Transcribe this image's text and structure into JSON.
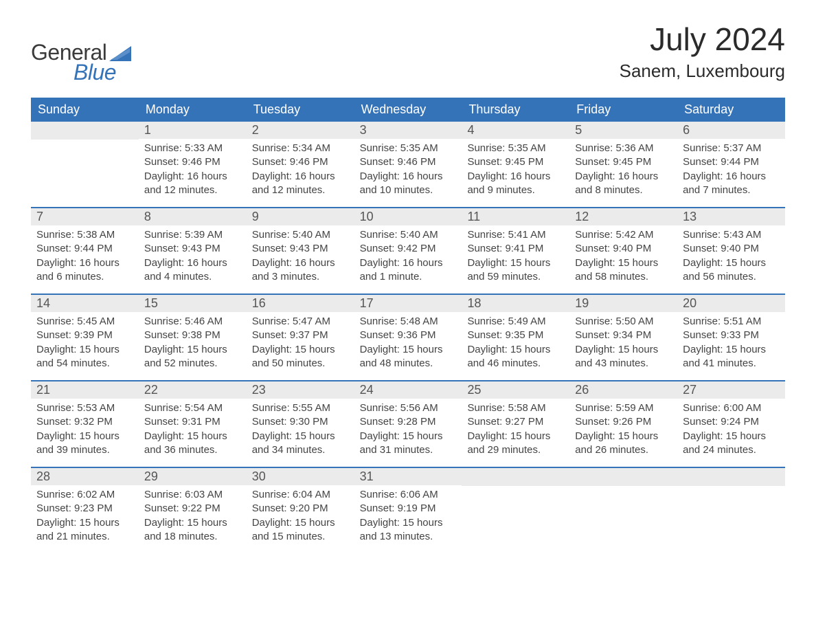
{
  "brand": {
    "text_general": "General",
    "text_blue": "Blue",
    "flag_color": "#3573b9"
  },
  "title": "July 2024",
  "location": "Sanem, Luxembourg",
  "colors": {
    "header_bg": "#3573b9",
    "header_text": "#ffffff",
    "daynum_bg": "#ebebeb",
    "body_text": "#404040",
    "rule": "#3573b9"
  },
  "typography": {
    "title_fontsize": 46,
    "location_fontsize": 26,
    "header_fontsize": 18,
    "daynum_fontsize": 18,
    "body_fontsize": 15
  },
  "day_labels": [
    "Sunday",
    "Monday",
    "Tuesday",
    "Wednesday",
    "Thursday",
    "Friday",
    "Saturday"
  ],
  "weeks": [
    [
      {
        "day": "",
        "sunrise": "",
        "sunset": "",
        "daylight": ""
      },
      {
        "day": "1",
        "sunrise": "Sunrise: 5:33 AM",
        "sunset": "Sunset: 9:46 PM",
        "daylight": "Daylight: 16 hours and 12 minutes."
      },
      {
        "day": "2",
        "sunrise": "Sunrise: 5:34 AM",
        "sunset": "Sunset: 9:46 PM",
        "daylight": "Daylight: 16 hours and 12 minutes."
      },
      {
        "day": "3",
        "sunrise": "Sunrise: 5:35 AM",
        "sunset": "Sunset: 9:46 PM",
        "daylight": "Daylight: 16 hours and 10 minutes."
      },
      {
        "day": "4",
        "sunrise": "Sunrise: 5:35 AM",
        "sunset": "Sunset: 9:45 PM",
        "daylight": "Daylight: 16 hours and 9 minutes."
      },
      {
        "day": "5",
        "sunrise": "Sunrise: 5:36 AM",
        "sunset": "Sunset: 9:45 PM",
        "daylight": "Daylight: 16 hours and 8 minutes."
      },
      {
        "day": "6",
        "sunrise": "Sunrise: 5:37 AM",
        "sunset": "Sunset: 9:44 PM",
        "daylight": "Daylight: 16 hours and 7 minutes."
      }
    ],
    [
      {
        "day": "7",
        "sunrise": "Sunrise: 5:38 AM",
        "sunset": "Sunset: 9:44 PM",
        "daylight": "Daylight: 16 hours and 6 minutes."
      },
      {
        "day": "8",
        "sunrise": "Sunrise: 5:39 AM",
        "sunset": "Sunset: 9:43 PM",
        "daylight": "Daylight: 16 hours and 4 minutes."
      },
      {
        "day": "9",
        "sunrise": "Sunrise: 5:40 AM",
        "sunset": "Sunset: 9:43 PM",
        "daylight": "Daylight: 16 hours and 3 minutes."
      },
      {
        "day": "10",
        "sunrise": "Sunrise: 5:40 AM",
        "sunset": "Sunset: 9:42 PM",
        "daylight": "Daylight: 16 hours and 1 minute."
      },
      {
        "day": "11",
        "sunrise": "Sunrise: 5:41 AM",
        "sunset": "Sunset: 9:41 PM",
        "daylight": "Daylight: 15 hours and 59 minutes."
      },
      {
        "day": "12",
        "sunrise": "Sunrise: 5:42 AM",
        "sunset": "Sunset: 9:40 PM",
        "daylight": "Daylight: 15 hours and 58 minutes."
      },
      {
        "day": "13",
        "sunrise": "Sunrise: 5:43 AM",
        "sunset": "Sunset: 9:40 PM",
        "daylight": "Daylight: 15 hours and 56 minutes."
      }
    ],
    [
      {
        "day": "14",
        "sunrise": "Sunrise: 5:45 AM",
        "sunset": "Sunset: 9:39 PM",
        "daylight": "Daylight: 15 hours and 54 minutes."
      },
      {
        "day": "15",
        "sunrise": "Sunrise: 5:46 AM",
        "sunset": "Sunset: 9:38 PM",
        "daylight": "Daylight: 15 hours and 52 minutes."
      },
      {
        "day": "16",
        "sunrise": "Sunrise: 5:47 AM",
        "sunset": "Sunset: 9:37 PM",
        "daylight": "Daylight: 15 hours and 50 minutes."
      },
      {
        "day": "17",
        "sunrise": "Sunrise: 5:48 AM",
        "sunset": "Sunset: 9:36 PM",
        "daylight": "Daylight: 15 hours and 48 minutes."
      },
      {
        "day": "18",
        "sunrise": "Sunrise: 5:49 AM",
        "sunset": "Sunset: 9:35 PM",
        "daylight": "Daylight: 15 hours and 46 minutes."
      },
      {
        "day": "19",
        "sunrise": "Sunrise: 5:50 AM",
        "sunset": "Sunset: 9:34 PM",
        "daylight": "Daylight: 15 hours and 43 minutes."
      },
      {
        "day": "20",
        "sunrise": "Sunrise: 5:51 AM",
        "sunset": "Sunset: 9:33 PM",
        "daylight": "Daylight: 15 hours and 41 minutes."
      }
    ],
    [
      {
        "day": "21",
        "sunrise": "Sunrise: 5:53 AM",
        "sunset": "Sunset: 9:32 PM",
        "daylight": "Daylight: 15 hours and 39 minutes."
      },
      {
        "day": "22",
        "sunrise": "Sunrise: 5:54 AM",
        "sunset": "Sunset: 9:31 PM",
        "daylight": "Daylight: 15 hours and 36 minutes."
      },
      {
        "day": "23",
        "sunrise": "Sunrise: 5:55 AM",
        "sunset": "Sunset: 9:30 PM",
        "daylight": "Daylight: 15 hours and 34 minutes."
      },
      {
        "day": "24",
        "sunrise": "Sunrise: 5:56 AM",
        "sunset": "Sunset: 9:28 PM",
        "daylight": "Daylight: 15 hours and 31 minutes."
      },
      {
        "day": "25",
        "sunrise": "Sunrise: 5:58 AM",
        "sunset": "Sunset: 9:27 PM",
        "daylight": "Daylight: 15 hours and 29 minutes."
      },
      {
        "day": "26",
        "sunrise": "Sunrise: 5:59 AM",
        "sunset": "Sunset: 9:26 PM",
        "daylight": "Daylight: 15 hours and 26 minutes."
      },
      {
        "day": "27",
        "sunrise": "Sunrise: 6:00 AM",
        "sunset": "Sunset: 9:24 PM",
        "daylight": "Daylight: 15 hours and 24 minutes."
      }
    ],
    [
      {
        "day": "28",
        "sunrise": "Sunrise: 6:02 AM",
        "sunset": "Sunset: 9:23 PM",
        "daylight": "Daylight: 15 hours and 21 minutes."
      },
      {
        "day": "29",
        "sunrise": "Sunrise: 6:03 AM",
        "sunset": "Sunset: 9:22 PM",
        "daylight": "Daylight: 15 hours and 18 minutes."
      },
      {
        "day": "30",
        "sunrise": "Sunrise: 6:04 AM",
        "sunset": "Sunset: 9:20 PM",
        "daylight": "Daylight: 15 hours and 15 minutes."
      },
      {
        "day": "31",
        "sunrise": "Sunrise: 6:06 AM",
        "sunset": "Sunset: 9:19 PM",
        "daylight": "Daylight: 15 hours and 13 minutes."
      },
      {
        "day": "",
        "sunrise": "",
        "sunset": "",
        "daylight": ""
      },
      {
        "day": "",
        "sunrise": "",
        "sunset": "",
        "daylight": ""
      },
      {
        "day": "",
        "sunrise": "",
        "sunset": "",
        "daylight": ""
      }
    ]
  ]
}
